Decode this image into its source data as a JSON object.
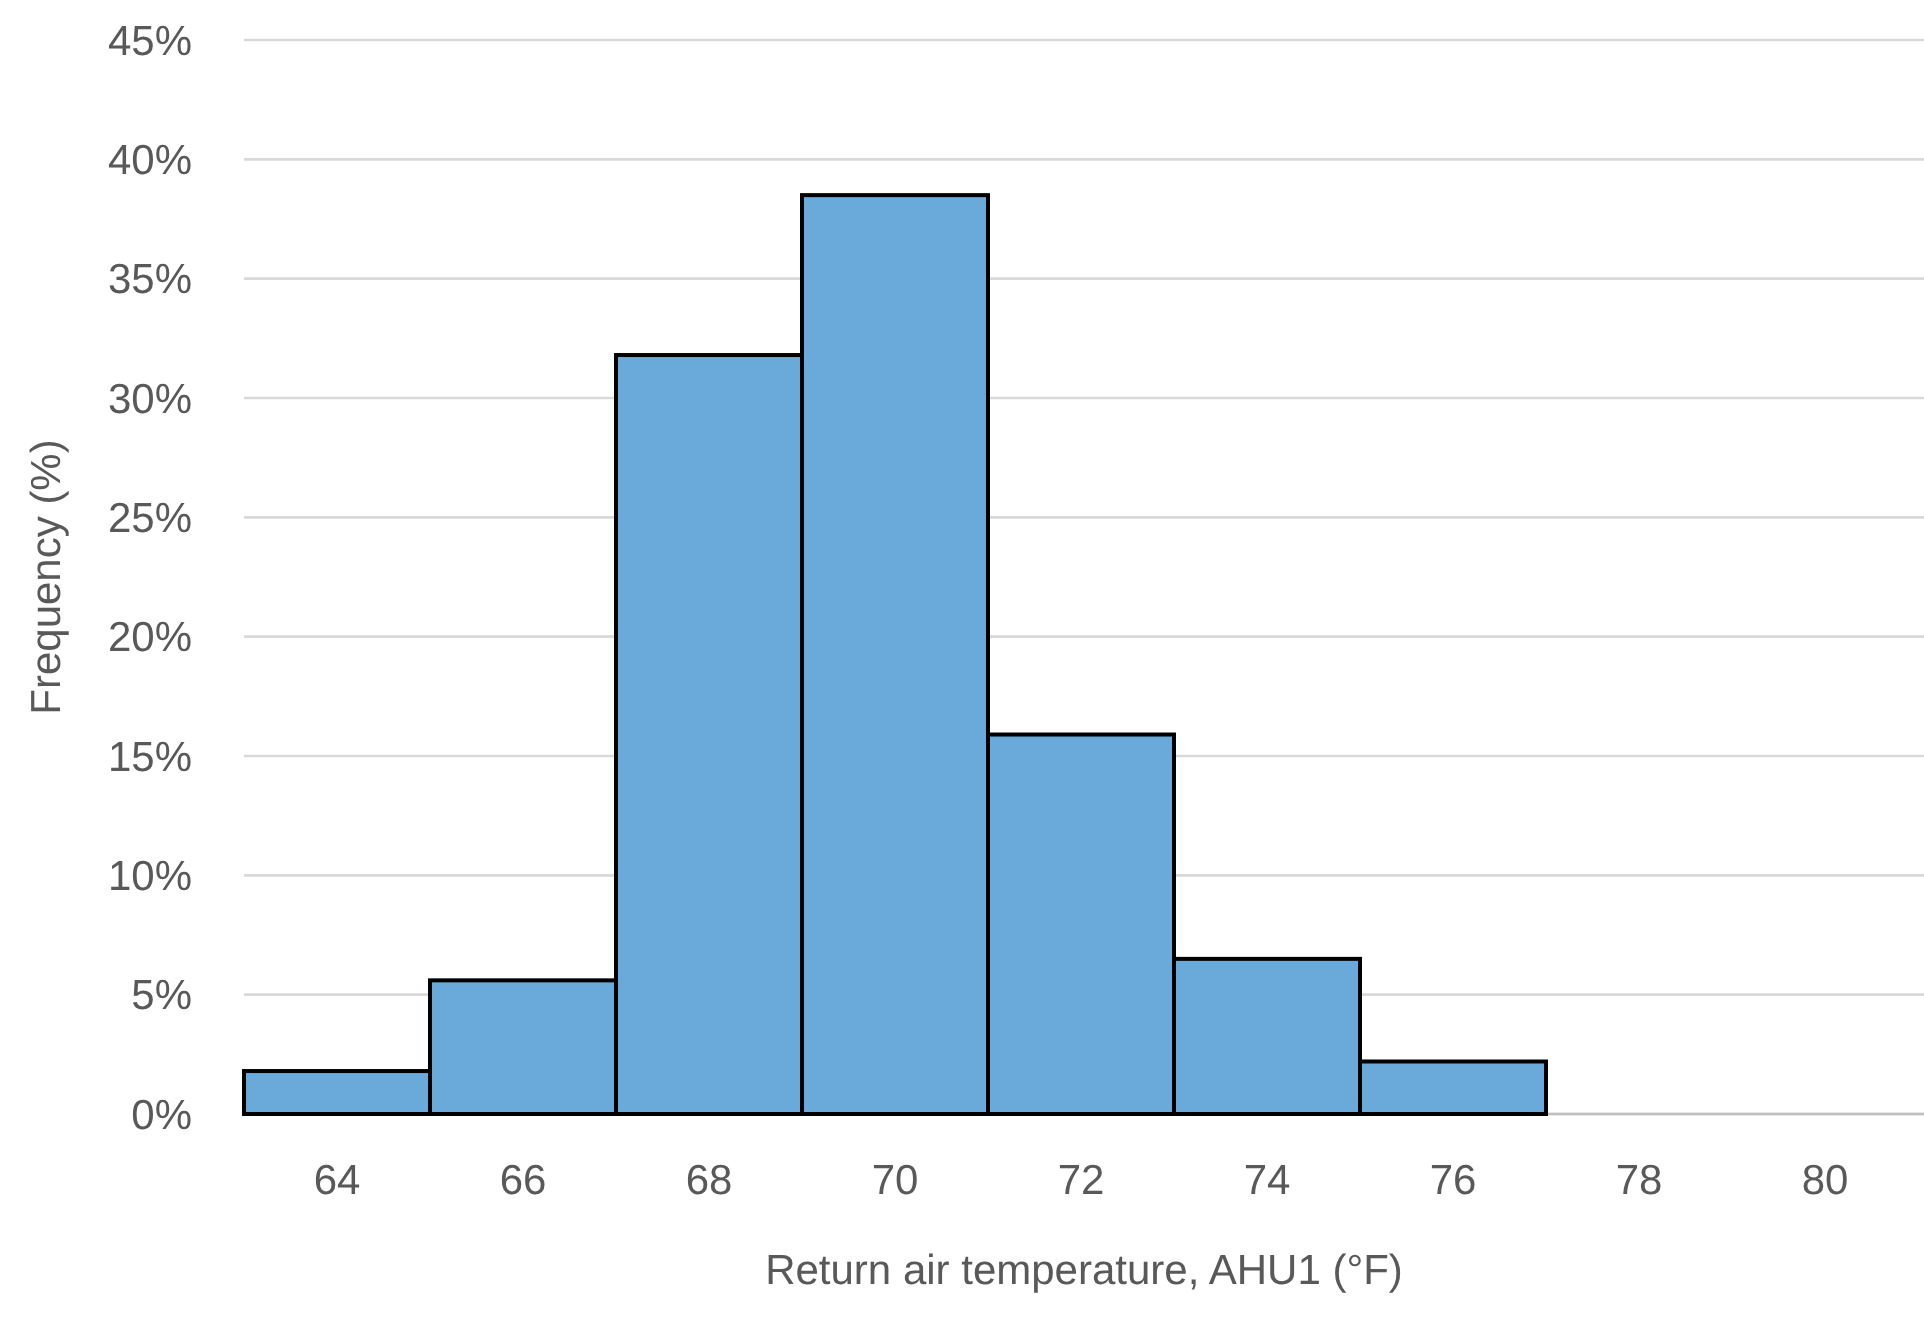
{
  "chart_data": {
    "type": "histogram",
    "xlabel": "Return air temperature, AHU1 (°F)",
    "ylabel": "Frequency (%)",
    "bins": [
      63,
      65,
      67,
      69,
      71,
      73,
      75,
      77
    ],
    "values": [
      1.8,
      5.6,
      31.8,
      38.5,
      15.9,
      6.5,
      2.2
    ],
    "color": "#6aaadb",
    "xlim": [
      63,
      81
    ],
    "xticks": [
      64,
      66,
      68,
      70,
      72,
      74,
      76,
      78,
      80
    ],
    "ylim": [
      0,
      45
    ],
    "yticks": [
      {
        "value": 0,
        "label": "0%"
      },
      {
        "value": 5,
        "label": "5%"
      },
      {
        "value": 10,
        "label": "10%"
      },
      {
        "value": 15,
        "label": "15%"
      },
      {
        "value": 20,
        "label": "20%"
      },
      {
        "value": 25,
        "label": "25%"
      },
      {
        "value": 30,
        "label": "30%"
      },
      {
        "value": 35,
        "label": "35%"
      },
      {
        "value": 40,
        "label": "40%"
      },
      {
        "value": 45,
        "label": "45%"
      }
    ],
    "grid": "y"
  }
}
